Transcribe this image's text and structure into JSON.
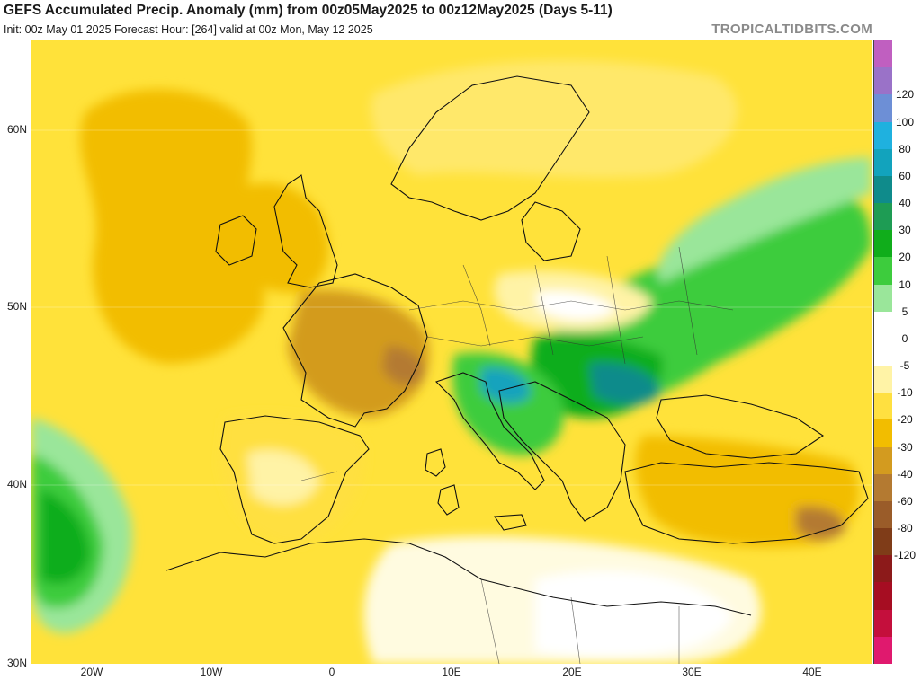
{
  "title": "GEFS Accumulated Precip. Anomaly (mm) from 00z05May2025 to 00z12May2025 (Days 5-11)",
  "subtitle": "Init: 00z May 01 2025   Forecast Hour: [264]   valid at 00z Mon, May 12 2025",
  "credit": "TROPICALTIDBITS.COM",
  "lat_labels": [
    "60N",
    "50N",
    "40N",
    "30N"
  ],
  "lon_labels": [
    "20W",
    "10W",
    "0",
    "10E",
    "20E",
    "30E",
    "40E"
  ],
  "colorbar": {
    "labels": [
      "120",
      "100",
      "80",
      "60",
      "40",
      "30",
      "20",
      "10",
      "5",
      "0",
      "-5",
      "-10",
      "-20",
      "-30",
      "-40",
      "-60",
      "-80",
      "-120"
    ],
    "colors": [
      "#c05fc0",
      "#9a72c8",
      "#6d8fd6",
      "#1fb1df",
      "#12a3bd",
      "#0f8b8b",
      "#1e9c54",
      "#10ad1b",
      "#3dcc3d",
      "#9ae69a",
      "#ffffff",
      "#ffffff",
      "#fff3a6",
      "#ffe040",
      "#f2bd00",
      "#d39b1f",
      "#b47a31",
      "#9a5c29",
      "#7f3c18",
      "#8c1a1a",
      "#a60d22",
      "#c40f3c",
      "#e0196e"
    ]
  }
}
